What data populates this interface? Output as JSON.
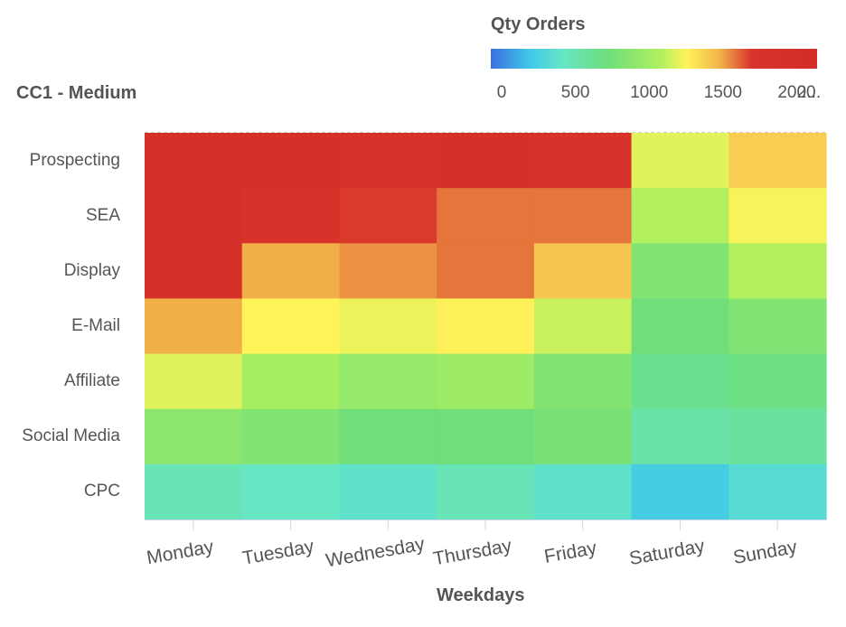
{
  "chart_data": {
    "type": "heatmap",
    "subtitle": "CC1 - Medium",
    "xlabel": "Weekdays",
    "ylabel": "",
    "categories": [
      "Monday",
      "Tuesday",
      "Wednesday",
      "Thursday",
      "Friday",
      "Saturday",
      "Sunday"
    ],
    "rows": [
      "Prospecting",
      "SEA",
      "Display",
      "E-Mail",
      "Affiliate",
      "Social Media",
      "CPC"
    ],
    "values": [
      [
        2100,
        2000,
        1900,
        2000,
        1800,
        1250,
        1450
      ],
      [
        2050,
        1800,
        1750,
        1650,
        1650,
        1150,
        1300
      ],
      [
        1950,
        1550,
        1600,
        1650,
        1480,
        900,
        1150
      ],
      [
        1550,
        1320,
        1280,
        1330,
        1200,
        800,
        900
      ],
      [
        1250,
        1100,
        1000,
        1050,
        900,
        700,
        750
      ],
      [
        950,
        900,
        800,
        800,
        850,
        600,
        650
      ],
      [
        550,
        500,
        450,
        550,
        450,
        300,
        400
      ]
    ],
    "legend": {
      "title": "Qty Orders",
      "ticks": [
        "0",
        "500",
        "1000",
        "1500",
        "2000",
        "2..."
      ],
      "range": [
        0,
        2200
      ],
      "placement": "top-right"
    }
  }
}
